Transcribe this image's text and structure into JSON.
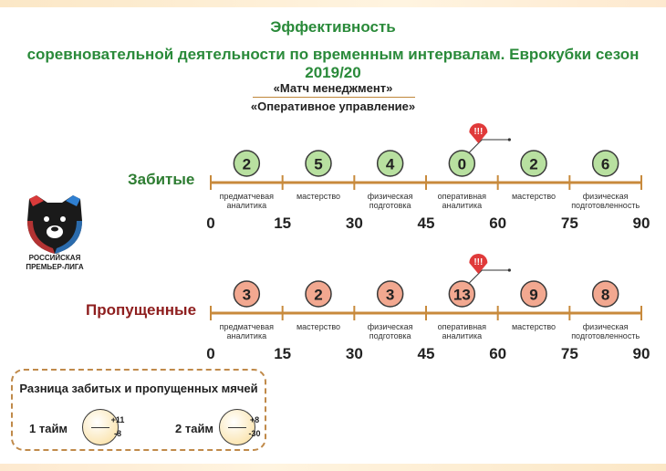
{
  "header": {
    "title_line1": "Эффективность",
    "title_line2": "соревновательной деятельности по временным интервалам. Еврокубки сезон 2019/20",
    "subtitle1": "«Матч менеджмент»",
    "subtitle2": "«Оперативное управление»"
  },
  "logo": {
    "line1": "РОССИЙСКАЯ",
    "line2": "ПРЕМЬЕР-ЛИГА"
  },
  "colors": {
    "scored_label": "#2e7d32",
    "conceded_label": "#8e1e1e",
    "scored_bubble": "#b8e0a0",
    "conceded_bubble": "#f2a890",
    "axis": "#c88a3c",
    "alert": "#e03a3a"
  },
  "chart_data": [
    {
      "type": "table",
      "name": "Забитые",
      "intervals": [
        "0-15",
        "15-30",
        "30-45",
        "45-60",
        "60-75",
        "75-90"
      ],
      "values": [
        2,
        5,
        4,
        0,
        2,
        6
      ],
      "categories": [
        [
          "предматчевая",
          "аналитика"
        ],
        [
          "мастерство"
        ],
        [
          "физическая",
          "подготовка"
        ],
        [
          "оперативная",
          "аналитика"
        ],
        [
          "мастерство"
        ],
        [
          "физическая",
          "подготовленность"
        ]
      ],
      "ticks": [
        0,
        15,
        30,
        45,
        60,
        75,
        90
      ],
      "alert": {
        "interval": "45-60",
        "text": "!!!"
      }
    },
    {
      "type": "table",
      "name": "Пропущенные",
      "intervals": [
        "0-15",
        "15-30",
        "30-45",
        "45-60",
        "60-75",
        "75-90"
      ],
      "values": [
        3,
        2,
        3,
        13,
        9,
        8
      ],
      "categories": [
        [
          "предматчевая",
          "аналитика"
        ],
        [
          "мастерство"
        ],
        [
          "физическая",
          "подготовка"
        ],
        [
          "оперативная",
          "аналитика"
        ],
        [
          "мастерство"
        ],
        [
          "физическая",
          "подготовленность"
        ]
      ],
      "ticks": [
        0,
        15,
        30,
        45,
        60,
        75,
        90
      ],
      "alert": {
        "interval": "45-60",
        "text": "!!!"
      }
    }
  ],
  "difference": {
    "title": "Разница забитых и пропущенных мячей",
    "half1": {
      "label": "1 тайм",
      "plus": "+11",
      "minus": "-8"
    },
    "half2": {
      "label": "2 тайм",
      "plus": "+8",
      "minus": "-30"
    }
  }
}
